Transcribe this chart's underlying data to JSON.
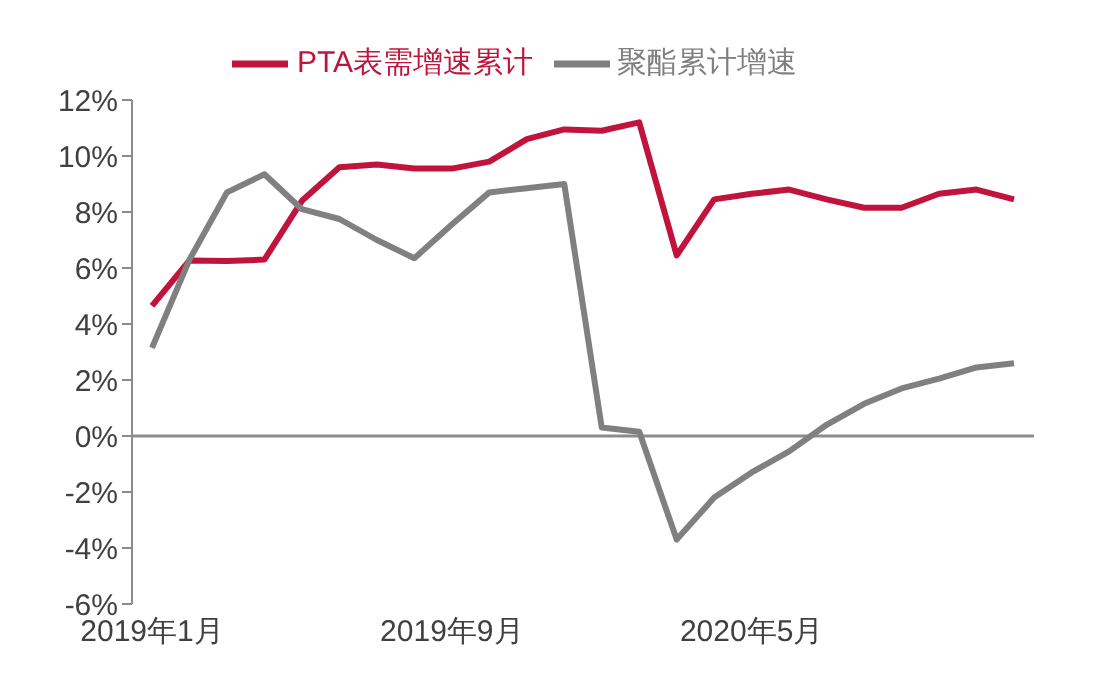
{
  "chart_data": {
    "type": "line",
    "categories": [
      "2019年1月",
      null,
      null,
      null,
      null,
      null,
      null,
      null,
      "2019年9月",
      null,
      null,
      null,
      null,
      null,
      null,
      null,
      "2020年5月",
      null,
      null,
      null,
      null,
      null,
      null,
      null
    ],
    "series": [
      {
        "name": "PTA表需增速累计",
        "color": "#c0143c",
        "values": [
          4.65,
          6.27,
          6.25,
          6.3,
          8.4,
          9.6,
          9.7,
          9.55,
          9.55,
          9.8,
          10.6,
          10.95,
          10.9,
          11.2,
          6.45,
          8.45,
          8.65,
          8.8,
          8.45,
          8.15,
          8.15,
          8.65,
          8.8,
          8.45
        ]
      },
      {
        "name": "聚酯累计增速",
        "color": "#808080",
        "values": [
          3.15,
          6.3,
          8.7,
          9.35,
          8.1,
          7.75,
          7.0,
          6.35,
          7.55,
          8.7,
          8.85,
          9.0,
          0.3,
          0.15,
          -3.7,
          -2.2,
          -1.3,
          -0.55,
          0.4,
          1.15,
          1.7,
          2.05,
          2.45,
          2.6
        ]
      }
    ],
    "ylim": [
      -6,
      12
    ],
    "yticks": [
      {
        "value": -6,
        "label": "-6%"
      },
      {
        "value": -4,
        "label": "-4%"
      },
      {
        "value": -2,
        "label": "-2%"
      },
      {
        "value": 0,
        "label": "0%"
      },
      {
        "value": 2,
        "label": "2%"
      },
      {
        "value": 4,
        "label": "4%"
      },
      {
        "value": 6,
        "label": "6%"
      },
      {
        "value": 8,
        "label": "8%"
      },
      {
        "value": 10,
        "label": "10%"
      },
      {
        "value": 12,
        "label": "12%"
      }
    ],
    "ref_lines": [
      {
        "axis": "y",
        "value": 0,
        "color": "#8c8c8c"
      }
    ],
    "grid": false,
    "legend": "top",
    "marker": "none",
    "line_style": "solid"
  }
}
